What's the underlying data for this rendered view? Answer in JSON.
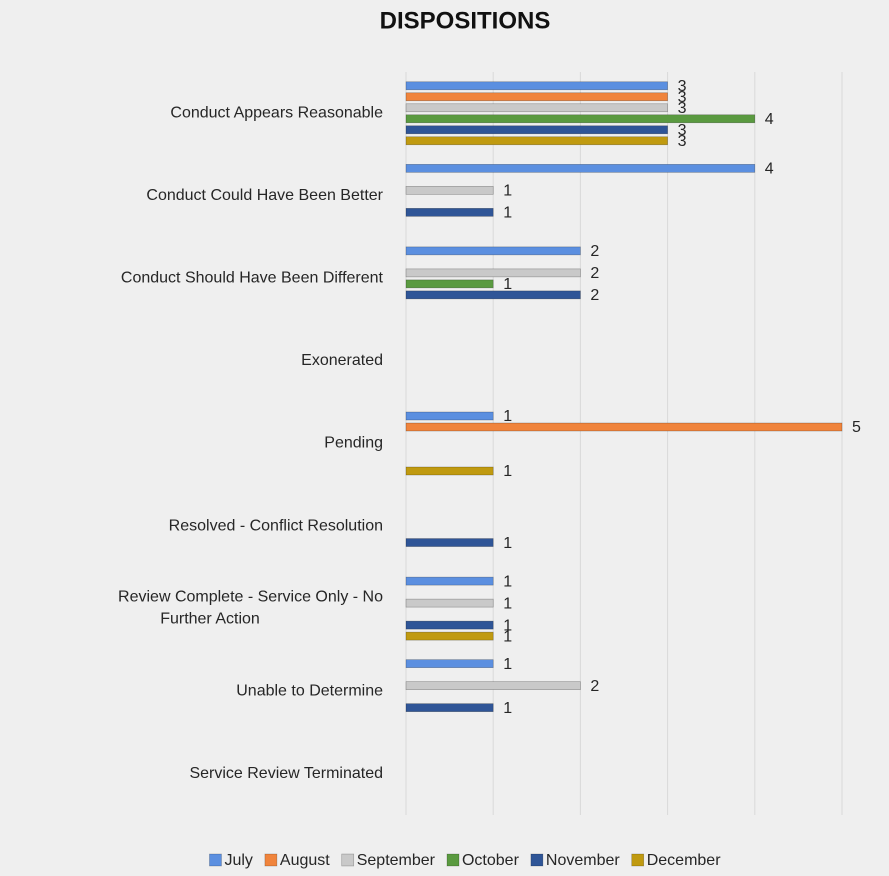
{
  "chart_data": {
    "type": "hbar",
    "title": "DISPOSITIONS",
    "categories": [
      "Conduct Appears Reasonable",
      "Conduct Could Have Been Better",
      "Conduct Should Have Been Different",
      "Exonerated",
      "Pending",
      "Resolved - Conflict Resolution",
      "Review Complete - Service Only - No Further Action",
      "Unable to Determine",
      "Service Review Terminated"
    ],
    "series": [
      {
        "name": "July",
        "color": "#5b8fe0",
        "values": [
          3,
          4,
          2,
          null,
          1,
          null,
          1,
          1,
          null
        ]
      },
      {
        "name": "August",
        "color": "#f0843c",
        "values": [
          3,
          null,
          null,
          null,
          5,
          null,
          null,
          null,
          null
        ]
      },
      {
        "name": "September",
        "color": "#c9c9c9",
        "values": [
          3,
          1,
          2,
          null,
          null,
          null,
          1,
          2,
          null
        ]
      },
      {
        "name": "October",
        "color": "#5a9a40",
        "values": [
          4,
          null,
          1,
          null,
          null,
          null,
          null,
          null,
          null
        ]
      },
      {
        "name": "November",
        "color": "#2f5597",
        "values": [
          3,
          1,
          2,
          null,
          null,
          1,
          1,
          1,
          null
        ]
      },
      {
        "name": "December",
        "color": "#c09a10",
        "values": [
          3,
          null,
          null,
          null,
          1,
          null,
          1,
          null,
          null
        ]
      }
    ],
    "xlim": [
      0,
      5
    ],
    "xticks": [
      0,
      1,
      2,
      3,
      4,
      5
    ],
    "grid": true,
    "legend": "bottom"
  }
}
